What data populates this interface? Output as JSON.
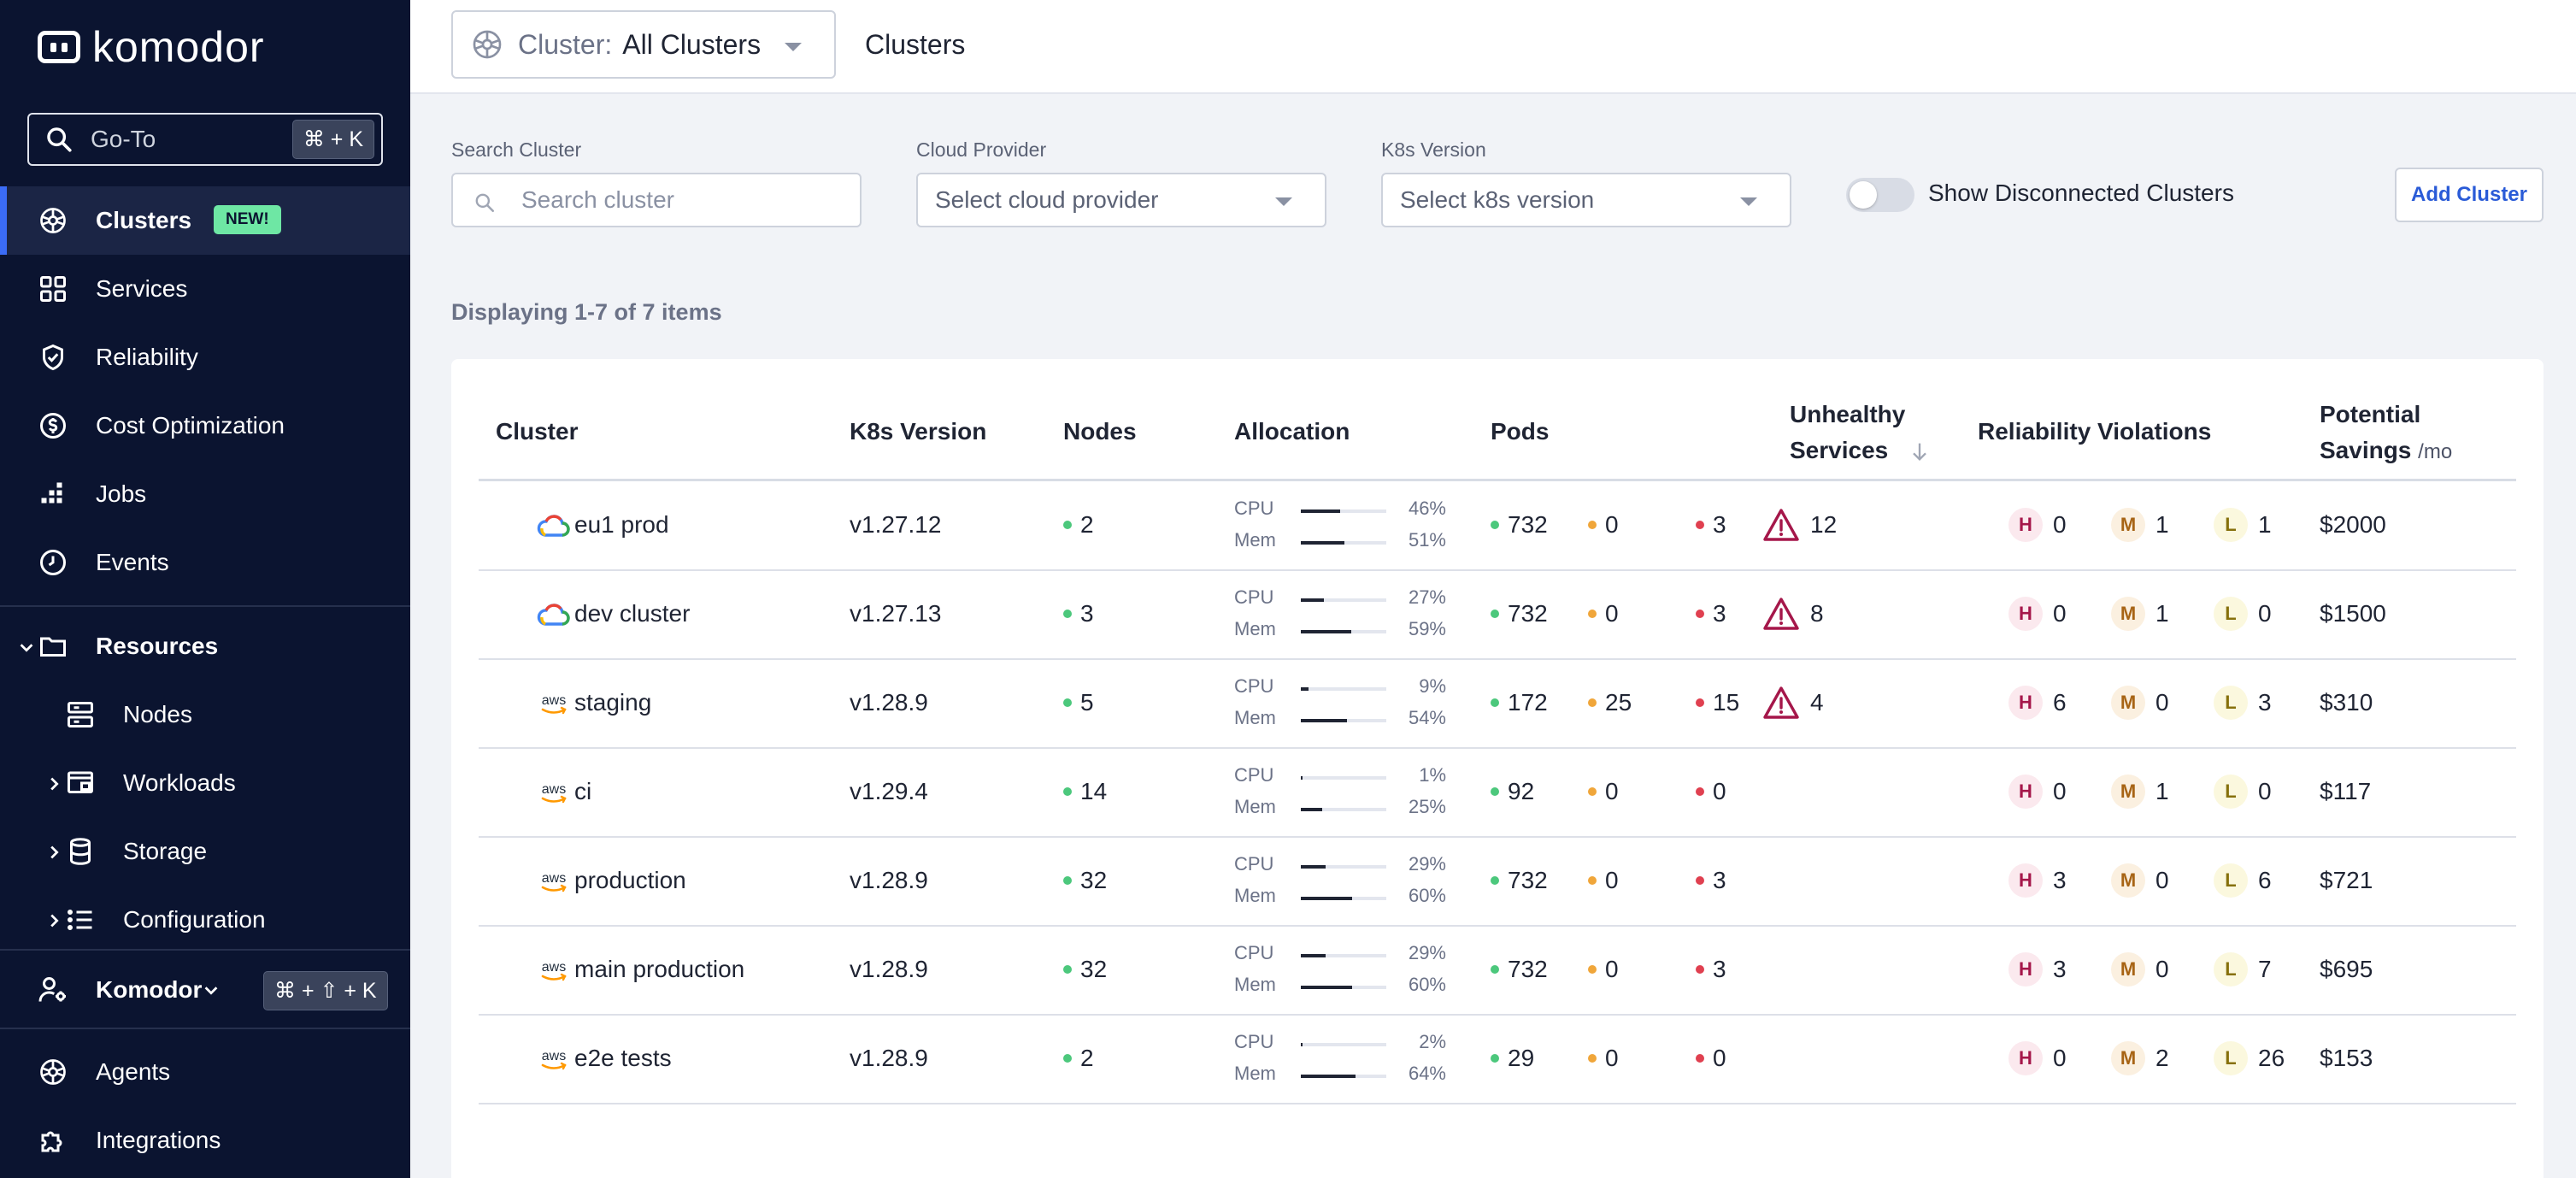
{
  "sidebar": {
    "logo": "komodor",
    "goto": {
      "label": "Go-To",
      "shortcut": "⌘ + K"
    },
    "items": [
      {
        "label": "Clusters",
        "badge": "NEW!"
      },
      {
        "label": "Services"
      },
      {
        "label": "Reliability"
      },
      {
        "label": "Cost Optimization"
      },
      {
        "label": "Jobs"
      },
      {
        "label": "Events"
      }
    ],
    "resources": {
      "label": "Resources",
      "children": [
        {
          "label": "Nodes"
        },
        {
          "label": "Workloads"
        },
        {
          "label": "Storage"
        },
        {
          "label": "Configuration"
        }
      ]
    },
    "account": {
      "label": "Komodor",
      "shortcut": "⌘ + ⇧ + K"
    },
    "bottom": [
      {
        "label": "Agents"
      },
      {
        "label": "Integrations"
      }
    ]
  },
  "topbar": {
    "cluster_label": "Cluster:",
    "cluster_value": "All Clusters",
    "title": "Clusters"
  },
  "filters": {
    "search": {
      "label": "Search Cluster",
      "placeholder": "Search cluster"
    },
    "cloud": {
      "label": "Cloud Provider",
      "placeholder": "Select cloud provider"
    },
    "k8s": {
      "label": "K8s Version",
      "placeholder": "Select k8s version"
    },
    "toggle_label": "Show Disconnected Clusters",
    "add_button": "Add Cluster"
  },
  "displaying": "Displaying 1-7 of 7 items",
  "table": {
    "headers": {
      "cluster": "Cluster",
      "k8s": "K8s Version",
      "nodes": "Nodes",
      "allocation": "Allocation",
      "pods": "Pods",
      "unhealthy_1": "Unhealthy",
      "unhealthy_2": "Services",
      "violations": "Reliability Violations",
      "savings_1": "Potential",
      "savings_2": "Savings",
      "savings_unit": "/mo"
    },
    "alloc_labels": {
      "cpu": "CPU",
      "mem": "Mem"
    },
    "violation_letters": {
      "h": "H",
      "m": "M",
      "l": "L"
    },
    "rows": [
      {
        "provider": "gcp",
        "name": "eu1 prod",
        "version": "v1.27.12",
        "nodes": "2",
        "cpu": "46%",
        "cpu_frac": 0.46,
        "mem": "51%",
        "mem_frac": 0.51,
        "pods_ok": "732",
        "pods_pending": "0",
        "pods_err": "3",
        "unhealthy": "12",
        "h": "0",
        "m": "1",
        "l": "1",
        "savings": "$2000"
      },
      {
        "provider": "gcp",
        "name": "dev cluster",
        "version": "v1.27.13",
        "nodes": "3",
        "cpu": "27%",
        "cpu_frac": 0.27,
        "mem": "59%",
        "mem_frac": 0.59,
        "pods_ok": "732",
        "pods_pending": "0",
        "pods_err": "3",
        "unhealthy": "8",
        "h": "0",
        "m": "1",
        "l": "0",
        "savings": "$1500"
      },
      {
        "provider": "aws",
        "name": "staging",
        "version": "v1.28.9",
        "nodes": "5",
        "cpu": "9%",
        "cpu_frac": 0.09,
        "mem": "54%",
        "mem_frac": 0.54,
        "pods_ok": "172",
        "pods_pending": "25",
        "pods_err": "15",
        "unhealthy": "4",
        "h": "6",
        "m": "0",
        "l": "3",
        "savings": "$310"
      },
      {
        "provider": "aws",
        "name": "ci",
        "version": "v1.29.4",
        "nodes": "14",
        "cpu": "1%",
        "cpu_frac": 0.01,
        "mem": "25%",
        "mem_frac": 0.25,
        "pods_ok": "92",
        "pods_pending": "0",
        "pods_err": "0",
        "unhealthy": "",
        "h": "0",
        "m": "1",
        "l": "0",
        "savings": "$117"
      },
      {
        "provider": "aws",
        "name": "production",
        "version": "v1.28.9",
        "nodes": "32",
        "cpu": "29%",
        "cpu_frac": 0.29,
        "mem": "60%",
        "mem_frac": 0.6,
        "pods_ok": "732",
        "pods_pending": "0",
        "pods_err": "3",
        "unhealthy": "",
        "h": "3",
        "m": "0",
        "l": "6",
        "savings": "$721"
      },
      {
        "provider": "aws",
        "name": "main production",
        "version": "v1.28.9",
        "nodes": "32",
        "cpu": "29%",
        "cpu_frac": 0.29,
        "mem": "60%",
        "mem_frac": 0.6,
        "pods_ok": "732",
        "pods_pending": "0",
        "pods_err": "3",
        "unhealthy": "",
        "h": "3",
        "m": "0",
        "l": "7",
        "savings": "$695"
      },
      {
        "provider": "aws",
        "name": "e2e tests",
        "version": "v1.28.9",
        "nodes": "2",
        "cpu": "2%",
        "cpu_frac": 0.02,
        "mem": "64%",
        "mem_frac": 0.64,
        "pods_ok": "29",
        "pods_pending": "0",
        "pods_err": "0",
        "unhealthy": "",
        "h": "0",
        "m": "2",
        "l": "26",
        "savings": "$153"
      }
    ]
  },
  "colors": {
    "sidebar_bg": "#0b1430",
    "accent": "#3b6cf6",
    "badge_new": "#6ee7a4",
    "link": "#2a5bd7"
  }
}
